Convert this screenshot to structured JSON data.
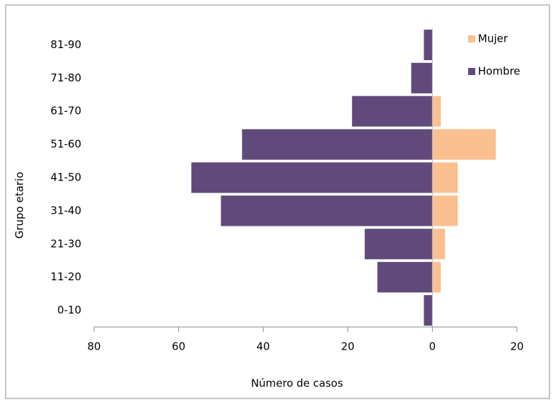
{
  "chart_data": {
    "type": "pyramid",
    "orientation": "horizontal",
    "x_label": "Número de casos",
    "y_label": "Grupo etario",
    "categories": [
      "0-10",
      "11-20",
      "21-30",
      "31-40",
      "41-50",
      "51-60",
      "61-70",
      "71-80",
      "81-90"
    ],
    "series": [
      {
        "name": "Mujer",
        "color": "#fac090",
        "values": [
          0,
          2,
          3,
          6,
          6,
          15,
          2,
          0,
          0
        ]
      },
      {
        "name": "Hombre",
        "color": "#604a7b",
        "values": [
          -2,
          -13,
          -16,
          -50,
          -57,
          -45,
          -19,
          -5,
          -2
        ]
      }
    ],
    "xlim": [
      -80,
      20
    ],
    "xticks": [
      {
        "value": -80,
        "label": "80"
      },
      {
        "value": -60,
        "label": "60"
      },
      {
        "value": -40,
        "label": "40"
      },
      {
        "value": -20,
        "label": "20"
      },
      0,
      20
    ],
    "legend": "top-right"
  }
}
